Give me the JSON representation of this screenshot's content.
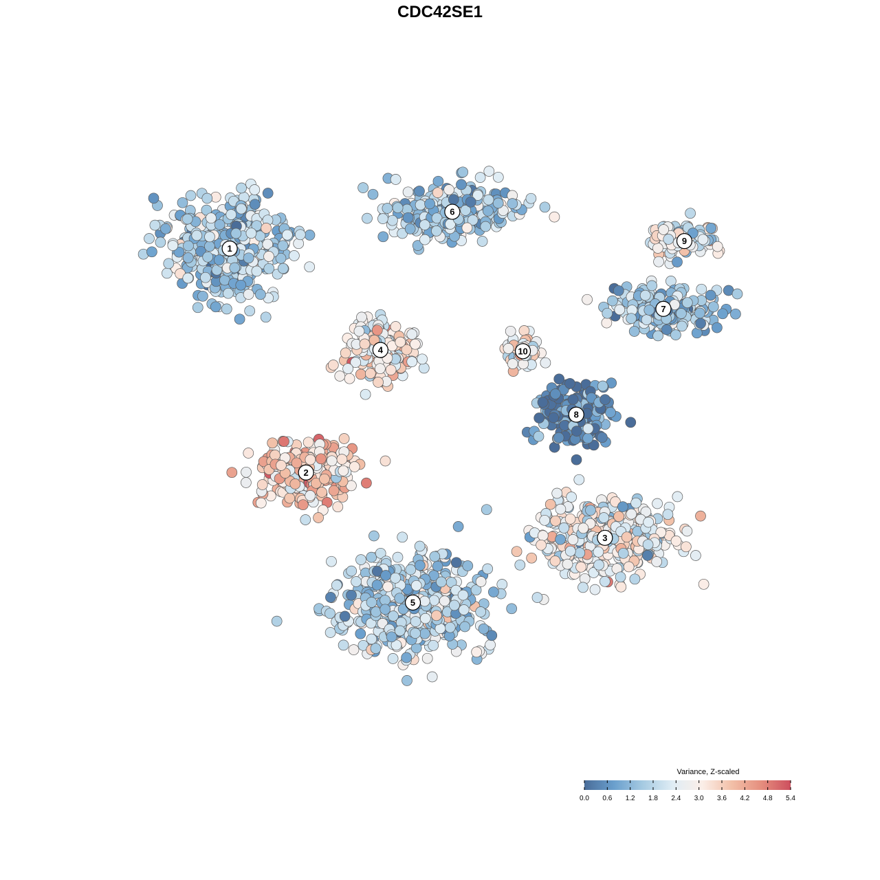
{
  "chart_data": {
    "type": "scatter",
    "title": "CDC42SE1",
    "x_range": [
      0,
      100
    ],
    "y_range": [
      0,
      100
    ],
    "color_palette": [
      "#4a6d99",
      "#6a9fcd",
      "#a7cbe2",
      "#e0edf5",
      "#fbeee8",
      "#f2c0a8",
      "#e58e7e",
      "#cd4f5e"
    ],
    "clusters": [
      {
        "label": "1",
        "x": 14.5,
        "y": 80.5,
        "value": 1.6,
        "spread": [
          11,
          9
        ]
      },
      {
        "label": "2",
        "x": 26.5,
        "y": 44.5,
        "value": 3.6,
        "spread": [
          9,
          6
        ]
      },
      {
        "label": "3",
        "x": 73.5,
        "y": 34.0,
        "value": 2.6,
        "spread": [
          13,
          7
        ]
      },
      {
        "label": "4",
        "x": 38.2,
        "y": 64.2,
        "value": 3.1,
        "spread": [
          6,
          6
        ]
      },
      {
        "label": "5",
        "x": 43.3,
        "y": 23.6,
        "value": 1.8,
        "spread": [
          13,
          9
        ]
      },
      {
        "label": "6",
        "x": 49.5,
        "y": 86.4,
        "value": 1.6,
        "spread": [
          12,
          5
        ]
      },
      {
        "label": "7",
        "x": 82.7,
        "y": 70.8,
        "value": 1.5,
        "spread": [
          10,
          4
        ]
      },
      {
        "label": "8",
        "x": 69.0,
        "y": 53.8,
        "value": 0.4,
        "spread": [
          7,
          6
        ]
      },
      {
        "label": "9",
        "x": 86.0,
        "y": 81.7,
        "value": 2.4,
        "spread": [
          6,
          3
        ]
      },
      {
        "label": "10",
        "x": 60.6,
        "y": 64.0,
        "value": 2.8,
        "spread": [
          3,
          3
        ]
      }
    ],
    "legend": {
      "title": "Variance, Z-scaled",
      "min": 0.0,
      "max": 5.4,
      "ticks": [
        "0.0",
        "0.6",
        "1.2",
        "1.8",
        "2.4",
        "3.0",
        "3.6",
        "4.2",
        "4.8",
        "5.4"
      ],
      "position": "bottom-right"
    }
  }
}
